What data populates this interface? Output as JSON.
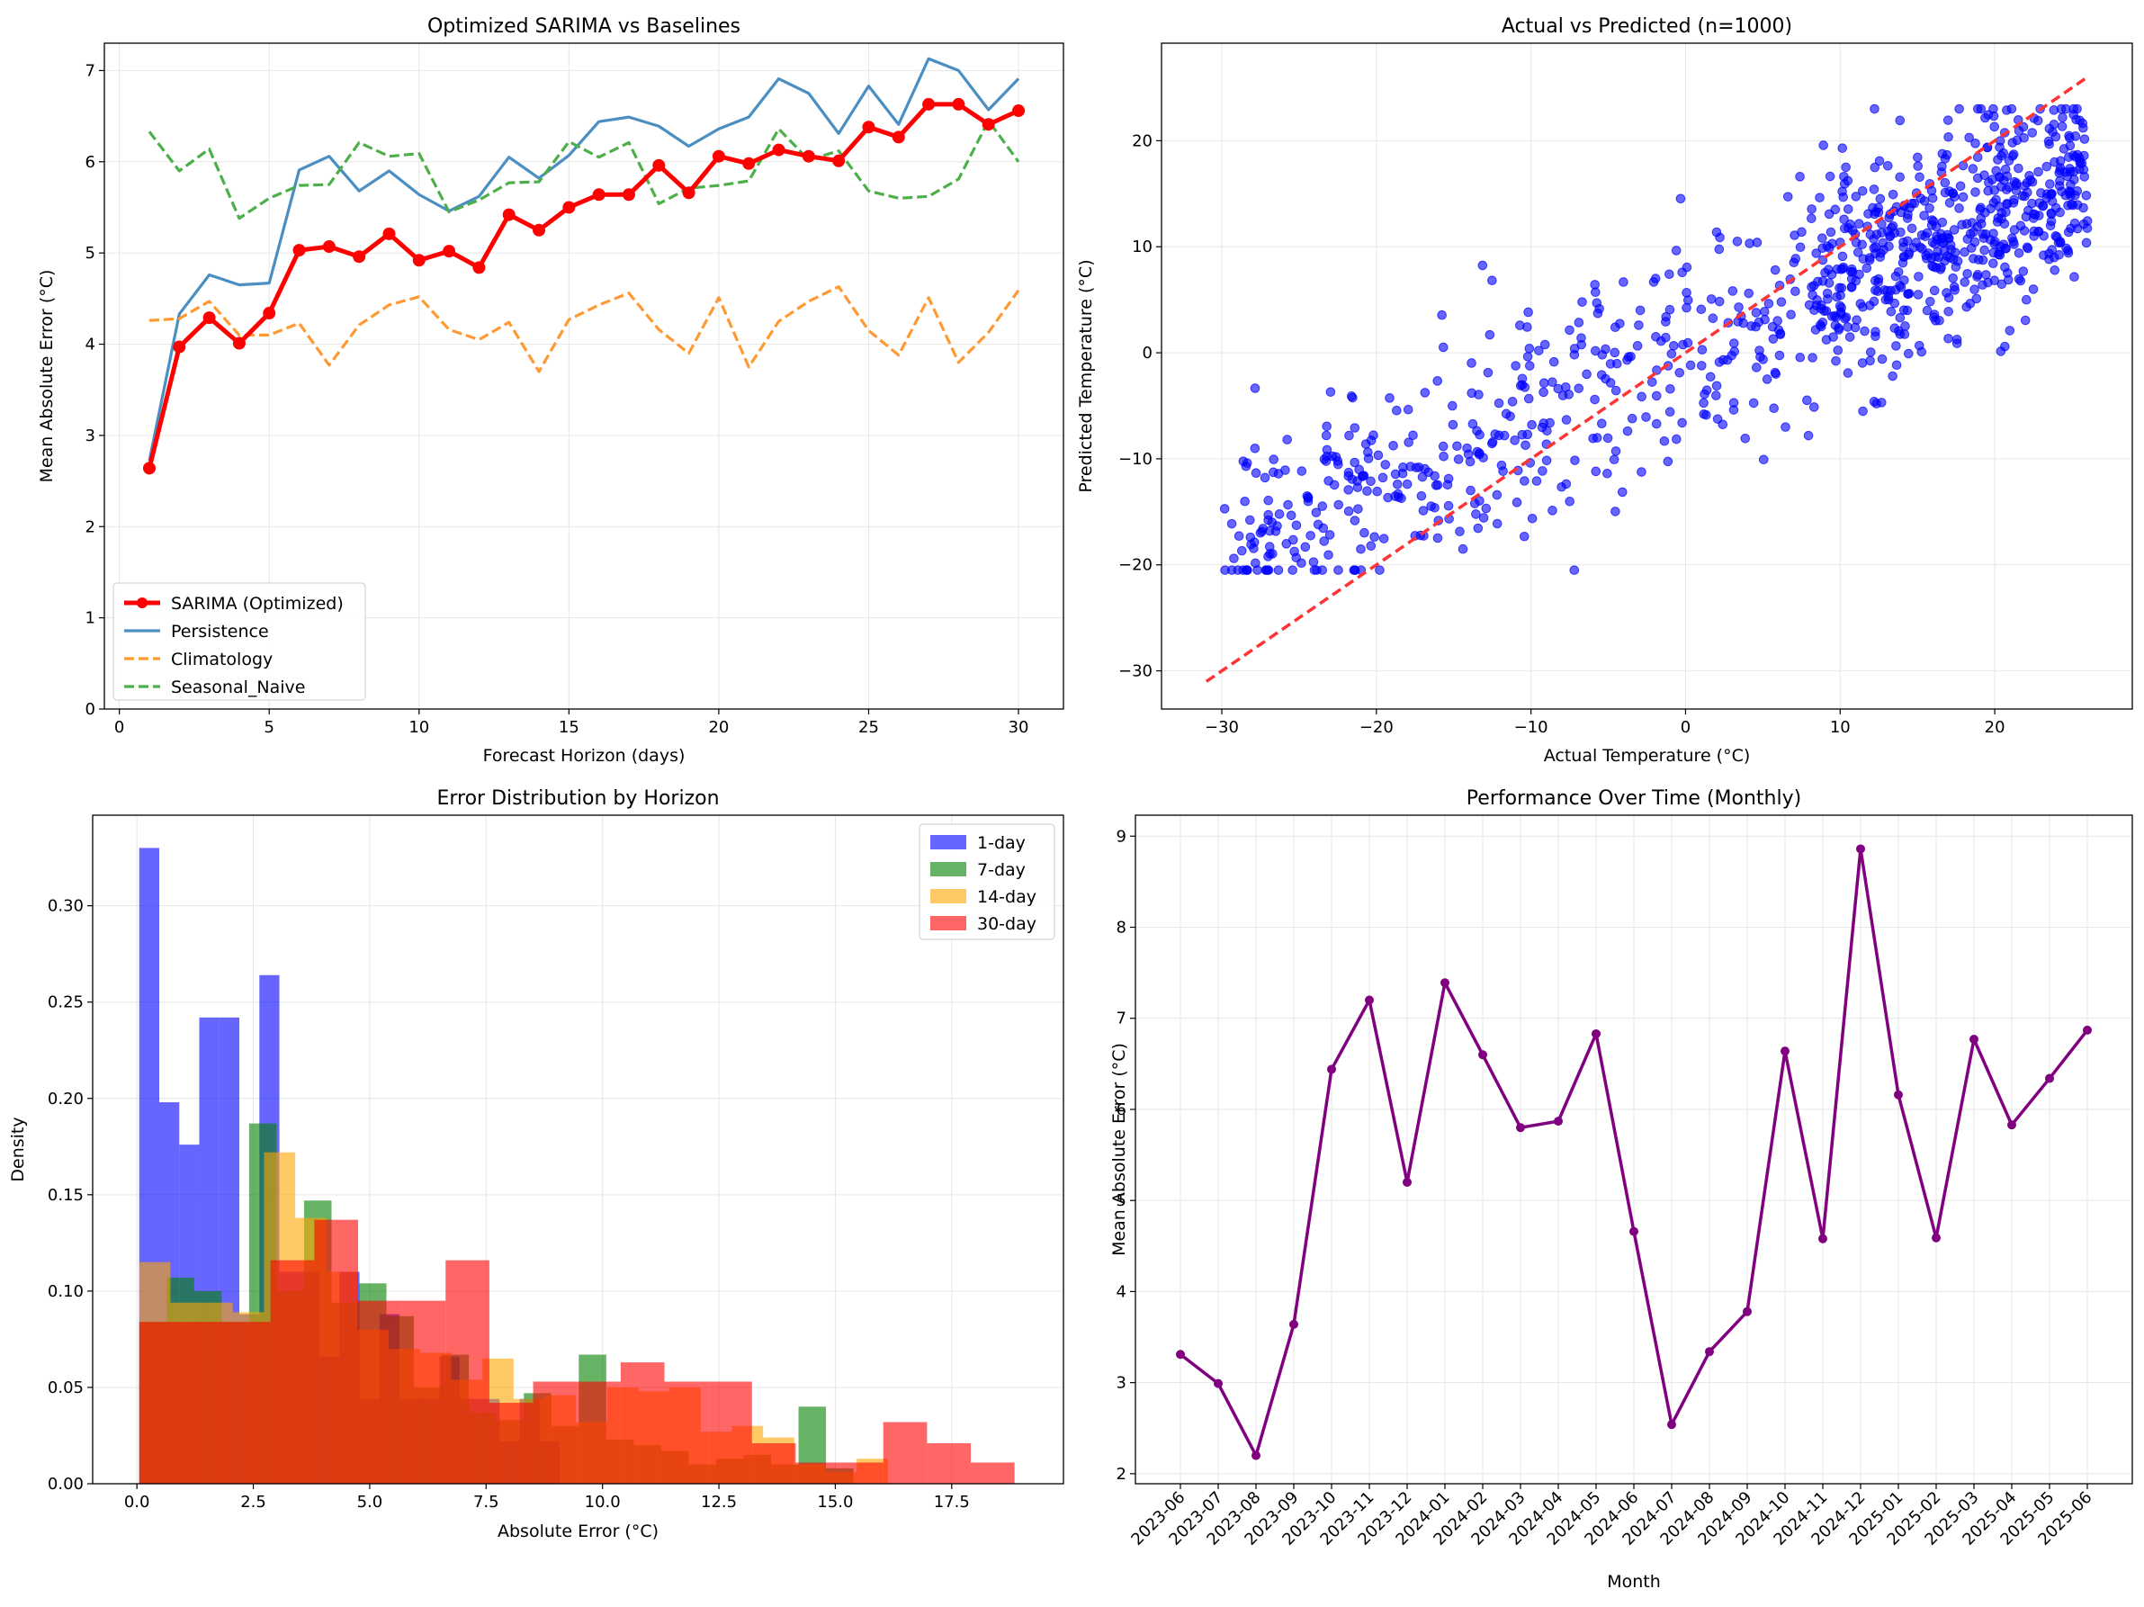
{
  "chart_data": [
    {
      "type": "line",
      "title": "Optimized SARIMA vs Baselines",
      "xlabel": "Forecast Horizon (days)",
      "ylabel": "Mean Absolute Error (°C)",
      "xlim": [
        -0.5,
        31.5
      ],
      "ylim": [
        0,
        7.3
      ],
      "xticks": [
        0,
        5,
        10,
        15,
        20,
        25,
        30
      ],
      "yticks": [
        0,
        1,
        2,
        3,
        4,
        5,
        6,
        7
      ],
      "grid": true,
      "legend": "lower-left",
      "x": [
        1,
        2,
        3,
        4,
        5,
        6,
        7,
        8,
        9,
        10,
        11,
        12,
        13,
        14,
        15,
        16,
        17,
        18,
        19,
        20,
        21,
        22,
        23,
        24,
        25,
        26,
        27,
        28,
        29,
        30
      ],
      "series": [
        {
          "name": "SARIMA (Optimized)",
          "color": "#ff0000",
          "style": "solid-marker",
          "values": [
            2.64,
            3.97,
            4.29,
            4.01,
            4.34,
            5.03,
            5.07,
            4.96,
            5.21,
            4.92,
            5.02,
            4.84,
            5.42,
            5.25,
            5.5,
            5.64,
            5.64,
            5.96,
            5.66,
            6.06,
            5.98,
            6.13,
            6.06,
            6.01,
            6.38,
            6.27,
            6.63,
            6.63,
            6.41,
            6.56
          ]
        },
        {
          "name": "Persistence",
          "color": "#4a8ec2",
          "style": "solid",
          "values": [
            2.72,
            4.33,
            4.76,
            4.65,
            4.67,
            5.91,
            6.06,
            5.68,
            5.9,
            5.64,
            5.46,
            5.62,
            6.05,
            5.82,
            6.07,
            6.44,
            6.49,
            6.39,
            6.17,
            6.36,
            6.49,
            6.91,
            6.75,
            6.31,
            6.83,
            6.41,
            7.13,
            7.0,
            6.57,
            6.91
          ]
        },
        {
          "name": "Climatology",
          "color": "#ff9933",
          "style": "dashed",
          "values": [
            4.26,
            4.28,
            4.47,
            4.1,
            4.1,
            4.23,
            3.77,
            4.21,
            4.43,
            4.52,
            4.16,
            4.05,
            4.24,
            3.7,
            4.27,
            4.43,
            4.56,
            4.16,
            3.9,
            4.51,
            3.75,
            4.25,
            4.47,
            4.63,
            4.15,
            3.88,
            4.51,
            3.8,
            4.13,
            4.59
          ]
        },
        {
          "name": "Seasonal_Naive",
          "color": "#4daf4a",
          "style": "dashed",
          "values": [
            6.33,
            5.9,
            6.14,
            5.38,
            5.6,
            5.74,
            5.75,
            6.21,
            6.06,
            6.09,
            5.45,
            5.58,
            5.77,
            5.78,
            6.22,
            6.05,
            6.21,
            5.54,
            5.71,
            5.74,
            5.79,
            6.36,
            6.02,
            6.12,
            5.68,
            5.6,
            5.62,
            5.81,
            6.45,
            6.0
          ]
        }
      ]
    },
    {
      "type": "scatter",
      "title": "Actual vs Predicted (n=1000)",
      "xlabel": "Actual Temperature (°C)",
      "ylabel": "Predicted Temperature (°C)",
      "xlim": [
        -33.9,
        28.9
      ],
      "ylim": [
        -33.6,
        29.2
      ],
      "xticks": [
        -30,
        -20,
        -10,
        0,
        10,
        20
      ],
      "yticks": [
        -30,
        -20,
        -10,
        0,
        10,
        20
      ],
      "grid": true,
      "point_color": "#0000ff",
      "reference_line": {
        "from": [
          -31,
          -31
        ],
        "to": [
          26,
          26
        ],
        "color": "#ff3333",
        "style": "dashed"
      },
      "n_points": 1000
    },
    {
      "type": "histogram",
      "title": "Error Distribution by Horizon",
      "xlabel": "Absolute Error (°C)",
      "ylabel": "Density",
      "xlim": [
        -0.95,
        19.9
      ],
      "ylim": [
        0,
        0.347
      ],
      "xticks": [
        0.0,
        2.5,
        5.0,
        7.5,
        10.0,
        12.5,
        15.0,
        17.5
      ],
      "xtick_labels": [
        "0.0",
        "2.5",
        "5.0",
        "7.5",
        "10.0",
        "12.5",
        "15.0",
        "17.5"
      ],
      "yticks": [
        0,
        0.05,
        0.1,
        0.15,
        0.2,
        0.25,
        0.3
      ],
      "ytick_labels": [
        "0.00",
        "0.05",
        "0.10",
        "0.15",
        "0.20",
        "0.25",
        "0.30"
      ],
      "grid": true,
      "legend": "top-right",
      "series": [
        {
          "name": "1-day",
          "color": "#0000ff",
          "opacity": 0.6,
          "bins": [
            [
              0.05,
              0.48,
              0.33
            ],
            [
              0.48,
              0.91,
              0.198
            ],
            [
              0.91,
              1.34,
              0.176
            ],
            [
              1.34,
              1.77,
              0.242
            ],
            [
              1.77,
              2.2,
              0.242
            ],
            [
              2.2,
              2.63,
              0.088
            ],
            [
              2.63,
              3.06,
              0.264
            ],
            [
              3.06,
              3.49,
              0.11
            ],
            [
              3.49,
              3.92,
              0.11
            ],
            [
              3.92,
              4.35,
              0.066
            ],
            [
              4.35,
              4.78,
              0.11
            ],
            [
              4.78,
              5.21,
              0.044
            ],
            [
              5.21,
              5.64,
              0.088
            ],
            [
              5.64,
              6.07,
              0.044
            ],
            [
              6.07,
              6.5,
              0.044
            ],
            [
              6.5,
              6.93,
              0.066
            ],
            [
              6.93,
              7.36,
              0.044
            ],
            [
              7.36,
              7.79,
              0.044
            ],
            [
              7.79,
              8.22,
              0.022
            ],
            [
              8.22,
              8.65,
              0.044
            ],
            [
              8.65,
              9.08,
              0.022
            ]
          ]
        },
        {
          "name": "7-day",
          "color": "#008000",
          "opacity": 0.6,
          "bins": [
            [
              0.05,
              0.64,
              0.084
            ],
            [
              0.64,
              1.23,
              0.107
            ],
            [
              1.23,
              1.82,
              0.1
            ],
            [
              1.82,
              2.41,
              0.084
            ],
            [
              2.41,
              3.0,
              0.187
            ],
            [
              3.0,
              3.59,
              0.1
            ],
            [
              3.59,
              4.18,
              0.147
            ],
            [
              4.18,
              4.77,
              0.094
            ],
            [
              4.77,
              5.36,
              0.104
            ],
            [
              5.36,
              5.95,
              0.087
            ],
            [
              5.95,
              6.54,
              0.05
            ],
            [
              6.54,
              7.13,
              0.067
            ],
            [
              7.13,
              7.72,
              0.037
            ],
            [
              7.72,
              8.31,
              0.033
            ],
            [
              8.31,
              8.9,
              0.047
            ],
            [
              8.9,
              9.49,
              0.03
            ],
            [
              9.49,
              10.08,
              0.067
            ],
            [
              10.08,
              10.67,
              0.023
            ],
            [
              10.67,
              11.26,
              0.02
            ],
            [
              11.26,
              11.85,
              0.017
            ],
            [
              11.85,
              12.44,
              0.01
            ],
            [
              12.44,
              13.03,
              0.013
            ],
            [
              13.03,
              13.62,
              0.015
            ],
            [
              13.62,
              14.21,
              0.01
            ],
            [
              14.21,
              14.8,
              0.04
            ],
            [
              14.8,
              15.39,
              0.008
            ]
          ]
        },
        {
          "name": "14-day",
          "color": "#ffa500",
          "opacity": 0.6,
          "bins": [
            [
              0.05,
              0.72,
              0.115
            ],
            [
              0.72,
              1.39,
              0.094
            ],
            [
              1.39,
              2.06,
              0.094
            ],
            [
              2.06,
              2.73,
              0.089
            ],
            [
              2.73,
              3.4,
              0.172
            ],
            [
              3.4,
              4.07,
              0.138
            ],
            [
              4.07,
              4.74,
              0.11
            ],
            [
              4.74,
              5.41,
              0.08
            ],
            [
              5.41,
              6.08,
              0.07
            ],
            [
              6.08,
              6.75,
              0.068
            ],
            [
              6.75,
              7.42,
              0.054
            ],
            [
              7.42,
              8.09,
              0.065
            ],
            [
              8.09,
              8.76,
              0.044
            ],
            [
              8.76,
              9.43,
              0.046
            ],
            [
              9.43,
              10.1,
              0.032
            ],
            [
              10.1,
              10.77,
              0.05
            ],
            [
              10.77,
              11.44,
              0.048
            ],
            [
              11.44,
              12.11,
              0.05
            ],
            [
              12.11,
              12.78,
              0.027
            ],
            [
              12.78,
              13.45,
              0.03
            ],
            [
              13.45,
              14.12,
              0.024
            ],
            [
              14.12,
              14.79,
              0.01
            ],
            [
              14.79,
              15.46,
              0.006
            ],
            [
              15.46,
              16.13,
              0.013
            ]
          ]
        },
        {
          "name": "30-day",
          "color": "#ff0000",
          "opacity": 0.6,
          "bins": [
            [
              0.05,
              0.99,
              0.084
            ],
            [
              0.99,
              1.93,
              0.084
            ],
            [
              1.93,
              2.87,
              0.084
            ],
            [
              2.87,
              3.81,
              0.116
            ],
            [
              3.81,
              4.75,
              0.137
            ],
            [
              4.75,
              5.69,
              0.095
            ],
            [
              5.69,
              6.63,
              0.095
            ],
            [
              6.63,
              7.57,
              0.116
            ],
            [
              7.57,
              8.51,
              0.042
            ],
            [
              8.51,
              9.45,
              0.053
            ],
            [
              9.45,
              10.39,
              0.053
            ],
            [
              10.39,
              11.33,
              0.063
            ],
            [
              11.33,
              12.27,
              0.053
            ],
            [
              12.27,
              13.21,
              0.053
            ],
            [
              13.21,
              14.15,
              0.021
            ],
            [
              14.15,
              15.09,
              0.011
            ],
            [
              15.09,
              16.03,
              0.011
            ],
            [
              16.03,
              16.97,
              0.032
            ],
            [
              16.97,
              17.91,
              0.021
            ],
            [
              17.91,
              18.85,
              0.011
            ]
          ]
        }
      ]
    },
    {
      "type": "line",
      "title": "Performance Over Time (Monthly)",
      "xlabel": "Month",
      "ylabel": "Mean Absolute Error (°C)",
      "ylim": [
        1.89,
        9.23
      ],
      "yticks": [
        2,
        3,
        4,
        5,
        6,
        7,
        8,
        9
      ],
      "grid": true,
      "color": "#800080",
      "categories": [
        "2023-06",
        "2023-07",
        "2023-08",
        "2023-09",
        "2023-10",
        "2023-11",
        "2023-12",
        "2024-01",
        "2024-02",
        "2024-03",
        "2024-04",
        "2024-05",
        "2024-06",
        "2024-07",
        "2024-08",
        "2024-09",
        "2024-10",
        "2024-11",
        "2024-12",
        "2025-01",
        "2025-02",
        "2025-03",
        "2025-04",
        "2025-05",
        "2025-06"
      ],
      "values": [
        3.31,
        2.99,
        2.2,
        3.64,
        6.44,
        7.2,
        5.2,
        7.39,
        6.6,
        5.8,
        5.87,
        6.83,
        4.66,
        2.54,
        3.34,
        3.78,
        6.64,
        4.58,
        8.86,
        6.16,
        4.59,
        6.77,
        5.83,
        6.34,
        6.87
      ]
    }
  ]
}
